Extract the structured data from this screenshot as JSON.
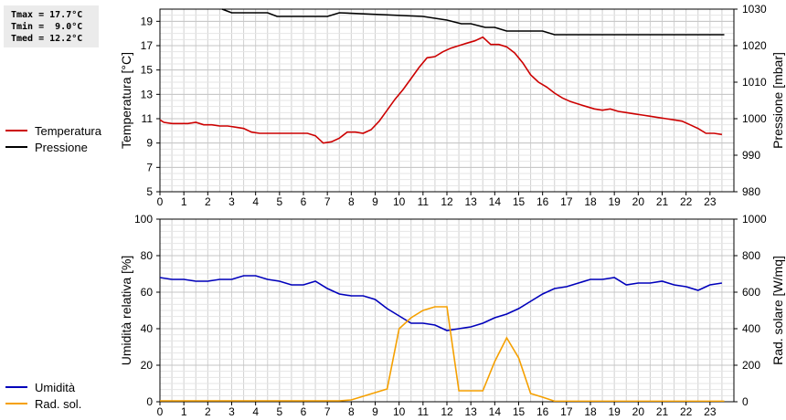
{
  "stats": {
    "tmax": "Tmax = 17.7°C",
    "tmin": "Tmin =  9.0°C",
    "tmed": "Tmed = 12.2°C"
  },
  "legend_top": [
    {
      "label": "Temperatura",
      "color": "#cc0000"
    },
    {
      "label": "Pressione",
      "color": "#000000"
    }
  ],
  "legend_bottom": [
    {
      "label": "Umidità",
      "color": "#0000bb"
    },
    {
      "label": "Rad. sol.",
      "color": "#f5a000"
    }
  ],
  "chart_data": [
    {
      "type": "line",
      "ylabel": "Temperatura [°C]",
      "y2label": "Pressione [mbar]",
      "xlim": [
        0,
        24
      ],
      "ylim": [
        5,
        20
      ],
      "y2lim": [
        980,
        1030
      ],
      "xticks": [
        "0",
        "1",
        "2",
        "3",
        "4",
        "5",
        "6",
        "7",
        "8",
        "9",
        "10",
        "11",
        "12",
        "13",
        "14",
        "15",
        "16",
        "17",
        "18",
        "19",
        "20",
        "21",
        "22",
        "23"
      ],
      "yticks": [
        5,
        7,
        9,
        11,
        13,
        15,
        17,
        19
      ],
      "y2ticks": [
        980,
        990,
        1000,
        1010,
        1020,
        1030
      ],
      "grid": true,
      "series": [
        {
          "name": "Temperatura",
          "axis": "left",
          "color": "#cc0000",
          "x": [
            0,
            0.17,
            0.5,
            0.83,
            1.17,
            1.5,
            1.83,
            2.17,
            2.5,
            2.83,
            3.17,
            3.5,
            3.83,
            4.17,
            4.5,
            4.83,
            5.17,
            5.5,
            5.83,
            6.17,
            6.5,
            6.83,
            7.17,
            7.5,
            7.83,
            8.17,
            8.5,
            8.83,
            9.17,
            9.5,
            9.83,
            10.17,
            10.5,
            10.83,
            11.17,
            11.5,
            11.83,
            12.17,
            12.5,
            12.83,
            13.17,
            13.5,
            13.83,
            14.17,
            14.5,
            14.83,
            15.17,
            15.5,
            15.83,
            16.17,
            16.5,
            16.83,
            17.17,
            17.5,
            17.83,
            18.17,
            18.5,
            18.83,
            19.17,
            19.5,
            19.83,
            20.17,
            20.5,
            20.83,
            21.17,
            21.5,
            21.83,
            22.17,
            22.5,
            22.83,
            23.17,
            23.5
          ],
          "values": [
            10.9,
            10.7,
            10.6,
            10.6,
            10.6,
            10.7,
            10.5,
            10.5,
            10.4,
            10.4,
            10.3,
            10.2,
            9.9,
            9.8,
            9.8,
            9.8,
            9.8,
            9.8,
            9.8,
            9.8,
            9.6,
            9.0,
            9.1,
            9.4,
            9.9,
            9.9,
            9.8,
            10.1,
            10.8,
            11.7,
            12.6,
            13.4,
            14.3,
            15.2,
            16.0,
            16.1,
            16.5,
            16.8,
            17.0,
            17.2,
            17.4,
            17.7,
            17.1,
            17.1,
            16.9,
            16.4,
            15.6,
            14.6,
            14.0,
            13.6,
            13.1,
            12.7,
            12.4,
            12.2,
            12.0,
            11.8,
            11.7,
            11.8,
            11.6,
            11.5,
            11.4,
            11.3,
            11.2,
            11.1,
            11.0,
            10.9,
            10.8,
            10.5,
            10.2,
            9.8,
            9.8,
            9.7
          ]
        },
        {
          "name": "Pressione",
          "axis": "right",
          "color": "#000000",
          "x": [
            2.6,
            3.0,
            3.4,
            4.5,
            4.9,
            7.0,
            7.5,
            11.0,
            12.0,
            12.6,
            13.0,
            13.6,
            14.0,
            14.5,
            16.0,
            16.5,
            23.6
          ],
          "values": [
            1030,
            1029,
            1029,
            1029,
            1028,
            1028,
            1029,
            1028,
            1027,
            1026,
            1026,
            1025,
            1025,
            1024,
            1024,
            1023,
            1023
          ]
        }
      ]
    },
    {
      "type": "line",
      "ylabel": "Umidità relativa [%]",
      "y2label": "Rad. solare [W/mq]",
      "xlim": [
        0,
        24
      ],
      "ylim": [
        0,
        100
      ],
      "y2lim": [
        0,
        1000
      ],
      "xticks": [
        "0",
        "1",
        "2",
        "3",
        "4",
        "5",
        "6",
        "7",
        "8",
        "9",
        "10",
        "11",
        "12",
        "13",
        "14",
        "15",
        "16",
        "17",
        "18",
        "19",
        "20",
        "21",
        "22",
        "23"
      ],
      "yticks": [
        0,
        20,
        40,
        60,
        80,
        100
      ],
      "y2ticks": [
        0,
        200,
        400,
        600,
        800,
        1000
      ],
      "grid": true,
      "series": [
        {
          "name": "Umidità",
          "axis": "left",
          "color": "#0000bb",
          "x": [
            0,
            0.5,
            1,
            1.5,
            2,
            2.5,
            3,
            3.5,
            4,
            4.5,
            5,
            5.5,
            6,
            6.5,
            7,
            7.5,
            8,
            8.5,
            9,
            9.5,
            10,
            10.5,
            11,
            11.5,
            12,
            12.5,
            13,
            13.5,
            14,
            14.5,
            15,
            15.5,
            16,
            16.5,
            17,
            17.5,
            18,
            18.5,
            19,
            19.5,
            20,
            20.5,
            21,
            21.5,
            22,
            22.5,
            23,
            23.5
          ],
          "values": [
            68,
            67,
            67,
            66,
            66,
            67,
            67,
            69,
            69,
            67,
            66,
            64,
            64,
            66,
            62,
            59,
            58,
            58,
            56,
            51,
            47,
            43,
            43,
            42,
            39,
            40,
            41,
            43,
            46,
            48,
            51,
            55,
            59,
            62,
            63,
            65,
            67,
            67,
            68,
            64,
            65,
            65,
            66,
            64,
            63,
            61,
            64,
            65
          ]
        },
        {
          "name": "Rad. sol.",
          "axis": "right",
          "color": "#f5a000",
          "x": [
            0,
            7.5,
            8,
            8.5,
            9,
            9.5,
            10,
            10.5,
            11,
            11.5,
            12,
            12.5,
            13,
            13.5,
            14,
            14.5,
            15,
            15.5,
            16,
            16.5,
            17,
            20,
            23.6
          ],
          "values": [
            5,
            5,
            10,
            30,
            50,
            70,
            400,
            460,
            500,
            520,
            520,
            60,
            60,
            60,
            220,
            350,
            240,
            45,
            25,
            3,
            3,
            3,
            3
          ]
        }
      ]
    }
  ]
}
